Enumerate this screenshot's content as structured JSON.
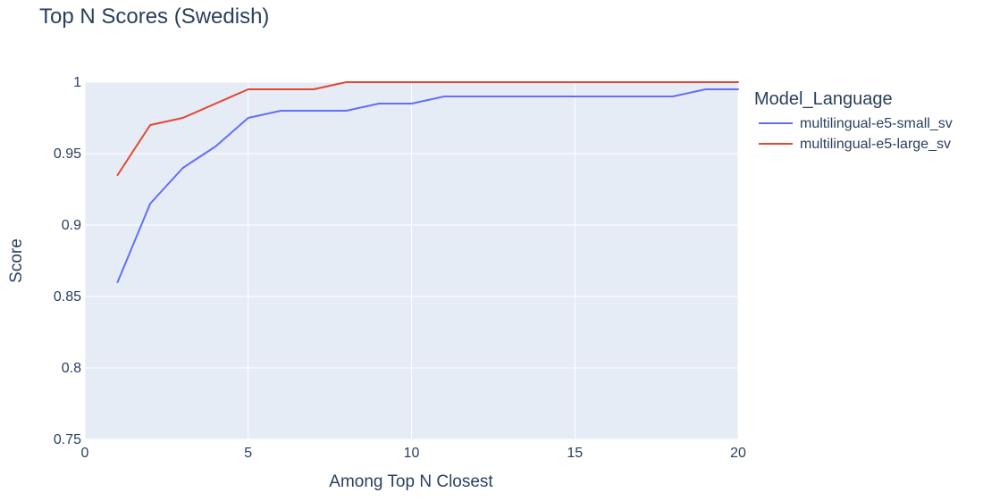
{
  "chart_data": {
    "type": "line",
    "title": "Top N Scores (Swedish)",
    "xlabel": "Among Top N Closest",
    "ylabel": "Score",
    "xlim": [
      0,
      20
    ],
    "ylim": [
      0.75,
      1.0
    ],
    "xticks": [
      0,
      5,
      10,
      15,
      20
    ],
    "yticks": [
      0.75,
      0.8,
      0.85,
      0.9,
      0.95,
      1
    ],
    "grid": true,
    "legend": {
      "title": "Model_Language",
      "placement": "right"
    },
    "x": [
      1,
      2,
      3,
      4,
      5,
      6,
      7,
      8,
      9,
      10,
      11,
      12,
      13,
      14,
      15,
      16,
      17,
      18,
      19,
      20
    ],
    "series": [
      {
        "name": "multilingual-e5-small_sv",
        "color": "#636efa",
        "values": [
          0.86,
          0.915,
          0.94,
          0.955,
          0.975,
          0.98,
          0.98,
          0.98,
          0.985,
          0.985,
          0.99,
          0.99,
          0.99,
          0.99,
          0.99,
          0.99,
          0.99,
          0.99,
          0.995,
          0.995
        ]
      },
      {
        "name": "multilingual-e5-large_sv",
        "color": "#e5462f",
        "values": [
          0.935,
          0.97,
          0.975,
          0.985,
          0.995,
          0.995,
          0.995,
          1.0,
          1.0,
          1.0,
          1.0,
          1.0,
          1.0,
          1.0,
          1.0,
          1.0,
          1.0,
          1.0,
          1.0,
          1.0
        ]
      }
    ]
  }
}
